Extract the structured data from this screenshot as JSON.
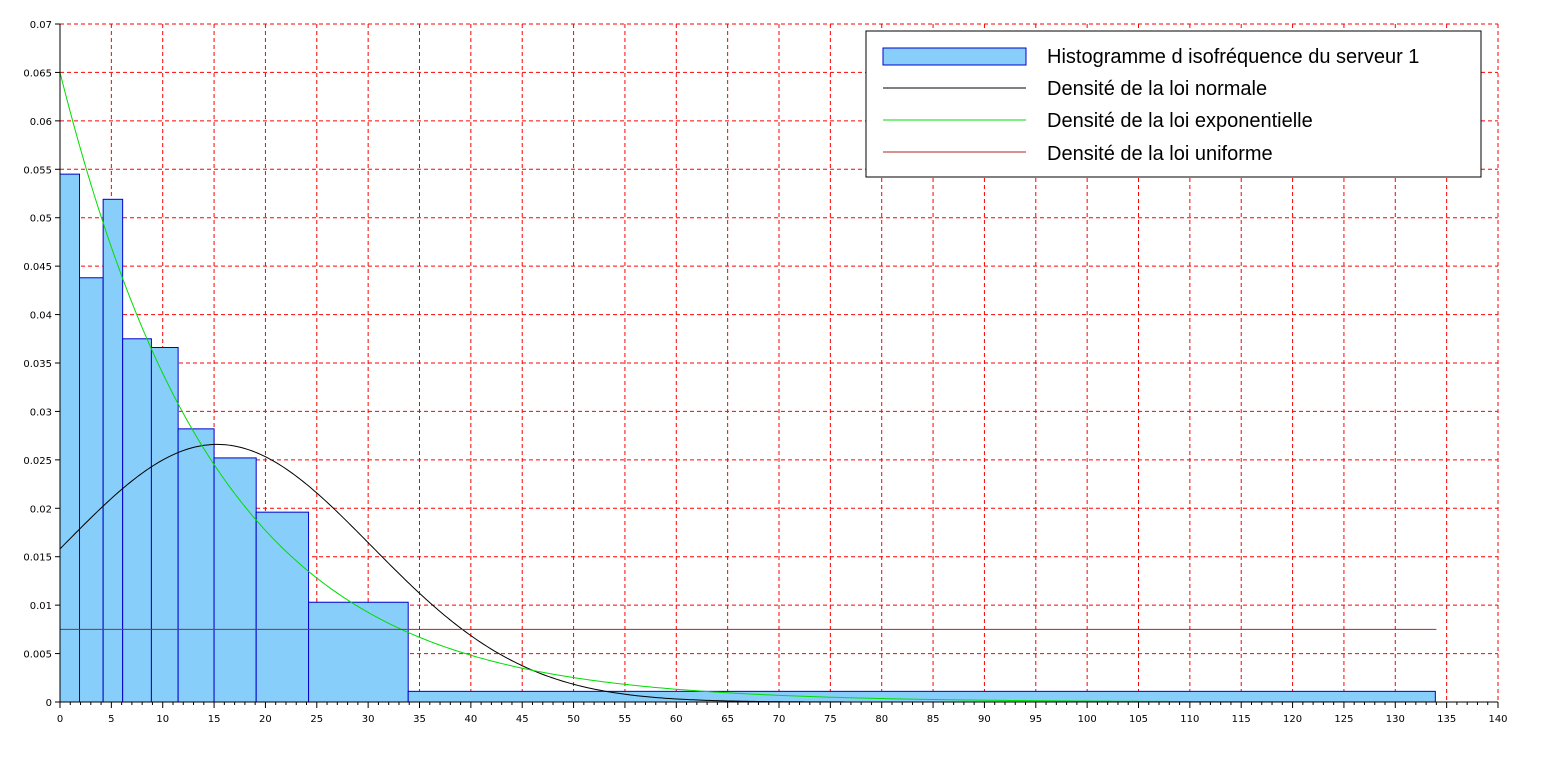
{
  "chart_data": {
    "type": "bar",
    "xlim": [
      0,
      140
    ],
    "ylim": [
      0,
      0.07
    ],
    "grid": true,
    "grid_color": "#ff0000",
    "legend_position": "top-right",
    "x_ticks": [
      "0",
      "5",
      "10",
      "15",
      "20",
      "25",
      "30",
      "35",
      "40",
      "45",
      "50",
      "55",
      "60",
      "65",
      "70",
      "75",
      "80",
      "85",
      "90",
      "95",
      "100",
      "105",
      "110",
      "115",
      "120",
      "125",
      "130",
      "135",
      "140"
    ],
    "y_ticks": [
      "0",
      "0.005",
      "0.01",
      "0.015",
      "0.02",
      "0.025",
      "0.03",
      "0.035",
      "0.04",
      "0.045",
      "0.05",
      "0.055",
      "0.06",
      "0.065",
      "0.07"
    ],
    "histogram": {
      "name": "Histogramme d isofréquence du serveur 1",
      "fill_color": "#87cefa",
      "edge_color": "#0000cc",
      "bins": [
        {
          "x0": 0,
          "x1": 1.9,
          "value": 0.0545
        },
        {
          "x0": 1.9,
          "x1": 4.2,
          "value": 0.0438
        },
        {
          "x0": 4.2,
          "x1": 6.1,
          "value": 0.0519
        },
        {
          "x0": 6.1,
          "x1": 8.9,
          "value": 0.0375
        },
        {
          "x0": 8.9,
          "x1": 11.5,
          "value": 0.0366
        },
        {
          "x0": 11.5,
          "x1": 15.0,
          "value": 0.0282
        },
        {
          "x0": 15.0,
          "x1": 19.1,
          "value": 0.0252
        },
        {
          "x0": 19.1,
          "x1": 24.2,
          "value": 0.0196
        },
        {
          "x0": 24.2,
          "x1": 33.9,
          "value": 0.0103
        },
        {
          "x0": 33.9,
          "x1": 133.9,
          "value": 0.0011
        }
      ]
    },
    "series": [
      {
        "name": "Densité de la loi normale",
        "type": "normal",
        "mean": 15.3,
        "sd": 15.0,
        "x_range": [
          0,
          104
        ],
        "color": "#000000"
      },
      {
        "name": "Densité de la loi exponentielle",
        "type": "exponential",
        "rate": 0.065,
        "x_range": [
          0,
          134
        ],
        "color": "#00dd00"
      },
      {
        "name": "Densité de la loi uniforme",
        "type": "uniform",
        "value": 0.0075,
        "x_range": [
          0,
          134
        ],
        "color": "#b22222"
      }
    ]
  }
}
